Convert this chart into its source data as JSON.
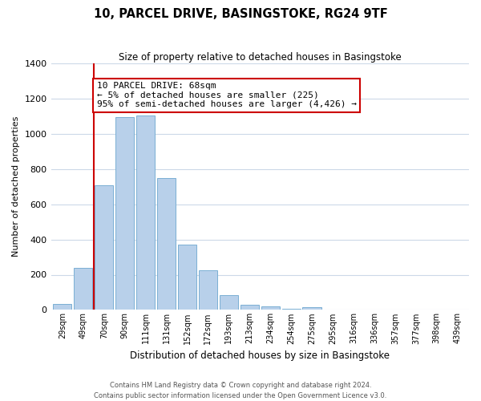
{
  "title": "10, PARCEL DRIVE, BASINGSTOKE, RG24 9TF",
  "subtitle": "Size of property relative to detached houses in Basingstoke",
  "xlabel": "Distribution of detached houses by size in Basingstoke",
  "ylabel": "Number of detached properties",
  "bar_labels": [
    "29sqm",
    "49sqm",
    "70sqm",
    "90sqm",
    "111sqm",
    "131sqm",
    "152sqm",
    "172sqm",
    "193sqm",
    "213sqm",
    "234sqm",
    "254sqm",
    "275sqm",
    "295sqm",
    "316sqm",
    "336sqm",
    "357sqm",
    "377sqm",
    "398sqm",
    "439sqm"
  ],
  "bar_values": [
    35,
    240,
    710,
    1095,
    1105,
    750,
    370,
    225,
    85,
    30,
    18,
    5,
    15,
    3,
    2,
    0,
    2,
    0,
    0,
    0
  ],
  "bar_color": "#b8d0ea",
  "bar_edge_color": "#7aafd4",
  "property_line_label": "10 PARCEL DRIVE: 68sqm",
  "smaller_pct": "5% of detached houses are smaller (225)",
  "larger_pct": "95% of semi-detached houses are larger (4,426)",
  "annotation_box_color": "#ffffff",
  "annotation_box_edgecolor": "#cc0000",
  "property_line_color": "#cc0000",
  "ylim": [
    0,
    1400
  ],
  "yticks": [
    0,
    200,
    400,
    600,
    800,
    1000,
    1200,
    1400
  ],
  "footer_line1": "Contains HM Land Registry data © Crown copyright and database right 2024.",
  "footer_line2": "Contains public sector information licensed under the Open Government Licence v3.0.",
  "bg_color": "#ffffff",
  "grid_color": "#ccd9e8"
}
